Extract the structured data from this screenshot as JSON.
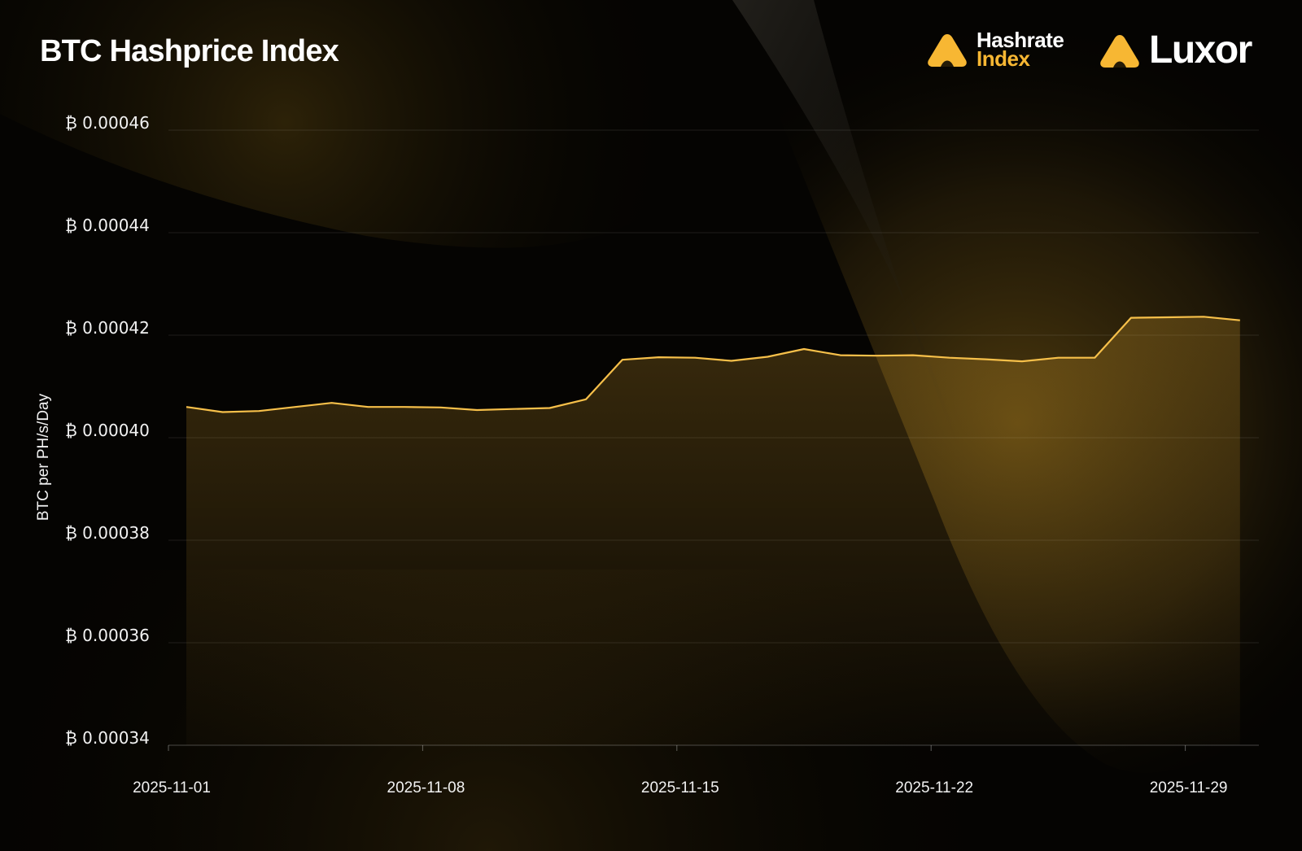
{
  "header": {
    "title": "BTC Hashprice Index"
  },
  "brands": {
    "hashrate_line1": "Hashrate",
    "hashrate_line2": "Index",
    "luxor": "Luxor",
    "accent_color": "#f7b733"
  },
  "chart_data": {
    "type": "area",
    "title": "BTC Hashprice Index",
    "xlabel": "",
    "ylabel": "BTC per PH/s/Day",
    "y_prefix": "₿ ",
    "ylim": [
      0.00034,
      0.00046
    ],
    "yticks": [
      "0.00046",
      "0.00044",
      "0.00042",
      "0.00040",
      "0.00038",
      "0.00036",
      "0.00034"
    ],
    "xticks": [
      "2025-11-01",
      "2025-11-08",
      "2025-11-15",
      "2025-11-22",
      "2025-11-29"
    ],
    "grid": true,
    "line_color": "#f7c04a",
    "series": [
      {
        "x": [
          "2025-11-01",
          "2025-11-02",
          "2025-11-03",
          "2025-11-04",
          "2025-11-05",
          "2025-11-06",
          "2025-11-07",
          "2025-11-08",
          "2025-11-09",
          "2025-11-10",
          "2025-11-11",
          "2025-11-12",
          "2025-11-13",
          "2025-11-14",
          "2025-11-15",
          "2025-11-16",
          "2025-11-17",
          "2025-11-18",
          "2025-11-19",
          "2025-11-20",
          "2025-11-21",
          "2025-11-22",
          "2025-11-23",
          "2025-11-24",
          "2025-11-25",
          "2025-11-26",
          "2025-11-27",
          "2025-11-28",
          "2025-11-29",
          "2025-11-30"
        ],
        "values": [
          0.000406,
          0.000405,
          0.0004052,
          0.000406,
          0.0004068,
          0.000406,
          0.000406,
          0.0004059,
          0.0004054,
          0.0004056,
          0.0004058,
          0.0004075,
          0.0004152,
          0.0004157,
          0.0004156,
          0.000415,
          0.0004158,
          0.0004173,
          0.0004161,
          0.000416,
          0.0004161,
          0.0004156,
          0.0004153,
          0.0004149,
          0.0004156,
          0.0004156,
          0.0004234,
          0.0004235,
          0.0004236,
          0.0004229
        ]
      }
    ]
  }
}
